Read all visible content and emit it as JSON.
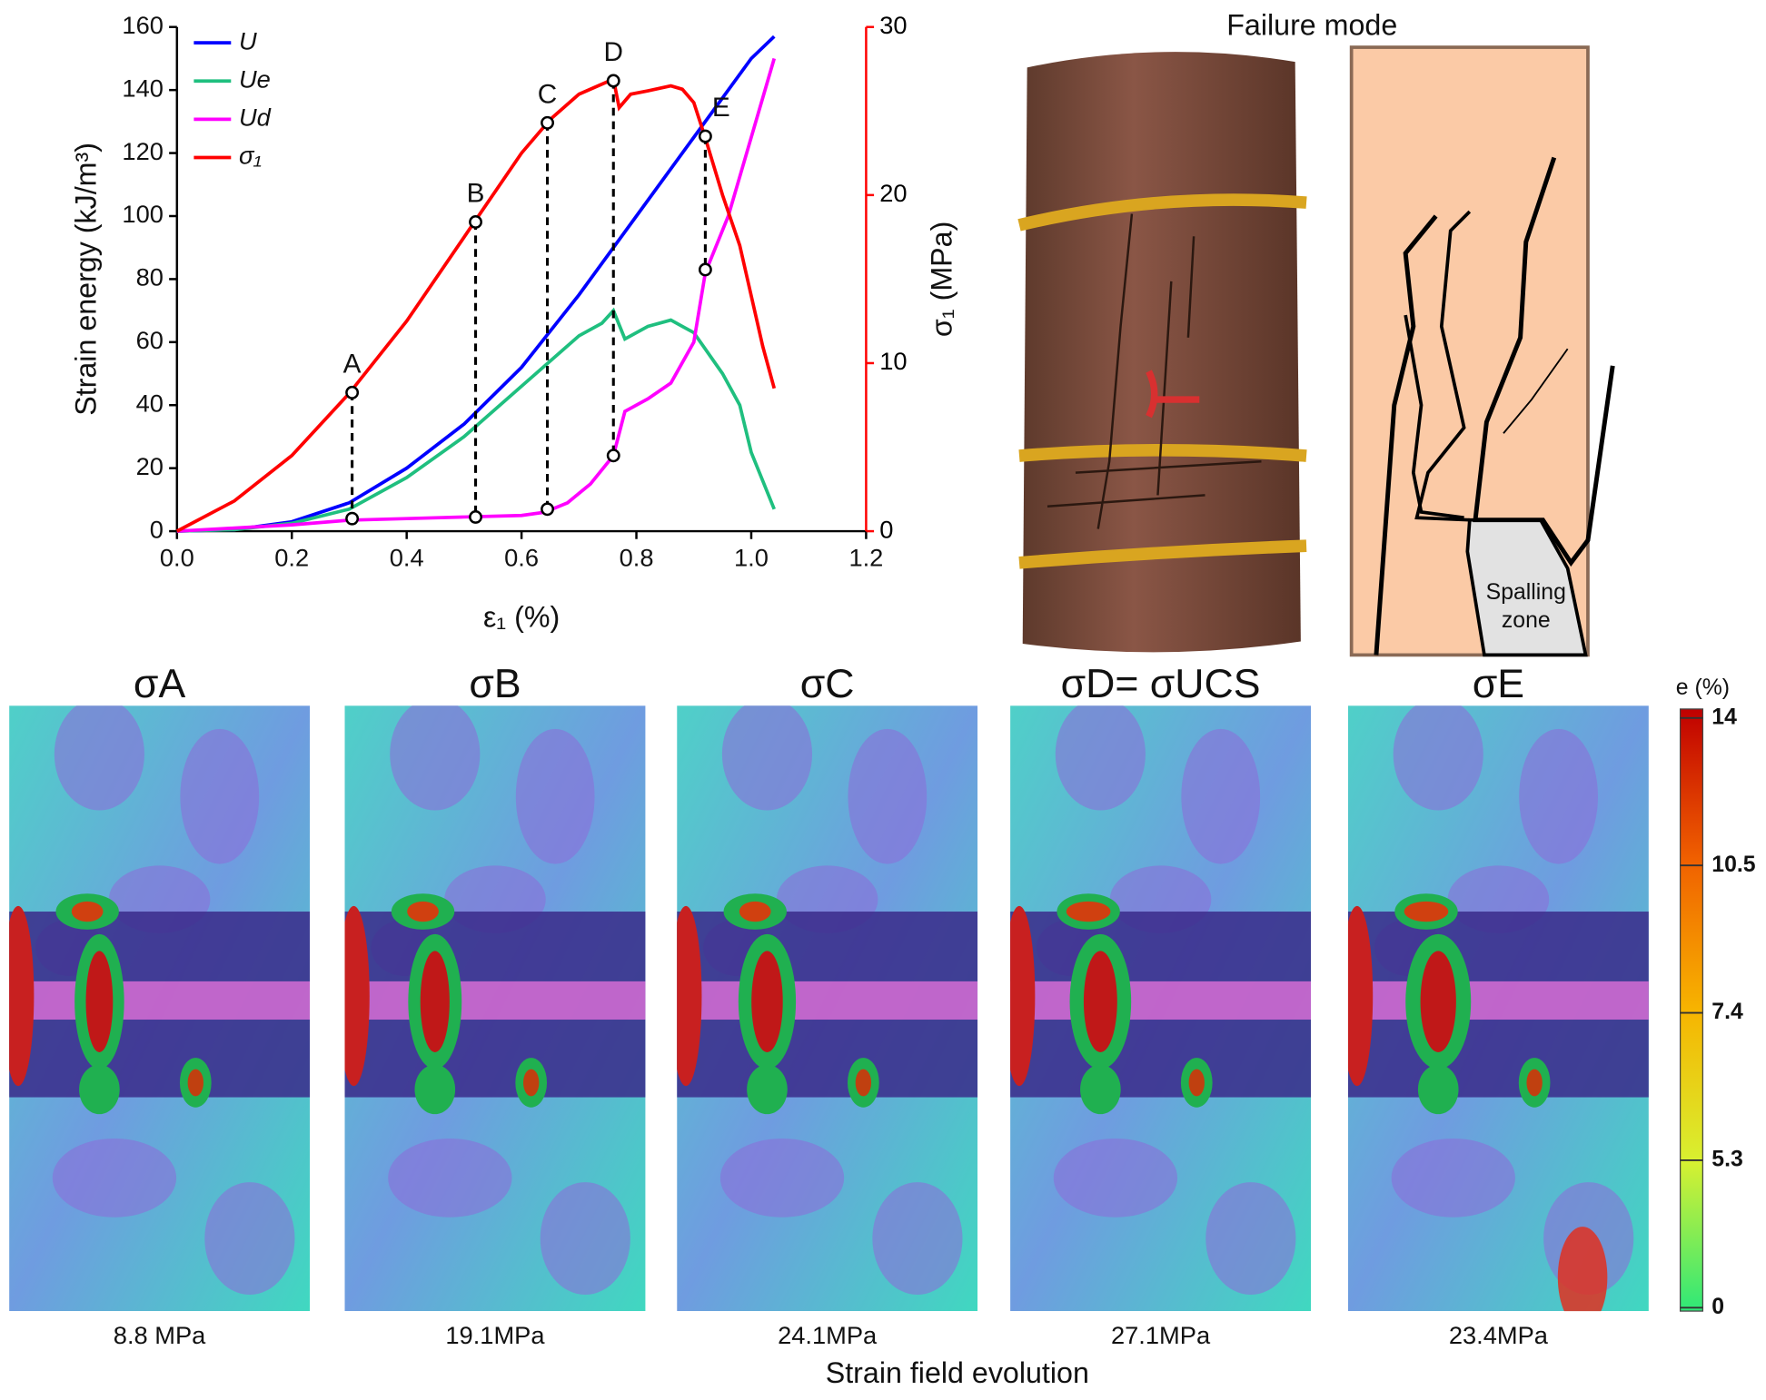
{
  "chart_data": {
    "type": "line",
    "x_label": "ε₁ (%)",
    "y_label": "Strain energy (kJ/m³)",
    "y2_label": "σ₁ (MPa)",
    "xlim": [
      0,
      1.2
    ],
    "xticks": [
      {
        "value": 0,
        "label": "0.0"
      },
      {
        "value": 0.2,
        "label": "0.2"
      },
      {
        "value": 0.4,
        "label": "0.4"
      },
      {
        "value": 0.6,
        "label": "0.6"
      },
      {
        "value": 0.8,
        "label": "0.8"
      },
      {
        "value": 1,
        "label": "1.0"
      },
      {
        "value": 1.2,
        "label": "1.2"
      }
    ],
    "ylim": [
      0,
      160
    ],
    "yticks": [
      0,
      20,
      40,
      60,
      80,
      100,
      120,
      140,
      160
    ],
    "y2lim": [
      0,
      30
    ],
    "y2ticks": [
      0,
      10,
      20,
      30
    ],
    "series": [
      {
        "name": "U",
        "color": "#0000ff",
        "x": [
          0,
          0.1,
          0.2,
          0.3,
          0.4,
          0.5,
          0.6,
          0.7,
          0.8,
          0.9,
          1.0,
          1.04
        ],
        "values": [
          0,
          0.5,
          3,
          9,
          20,
          34,
          52,
          75,
          100,
          125,
          150,
          157
        ]
      },
      {
        "name": "Ue",
        "color": "#1fbf7f",
        "x": [
          0,
          0.1,
          0.2,
          0.3,
          0.4,
          0.5,
          0.6,
          0.7,
          0.74,
          0.76,
          0.78,
          0.82,
          0.86,
          0.88,
          0.9,
          0.95,
          0.98,
          1.0,
          1.04
        ],
        "values": [
          0,
          0.5,
          2.5,
          7,
          17,
          30,
          46,
          62,
          66,
          70,
          61,
          65,
          67,
          65,
          63,
          50,
          40,
          25,
          7
        ]
      },
      {
        "name": "Ud",
        "color": "#ff00ff",
        "x": [
          0,
          0.1,
          0.2,
          0.3,
          0.4,
          0.5,
          0.6,
          0.64,
          0.68,
          0.72,
          0.76,
          0.78,
          0.82,
          0.86,
          0.9,
          0.92,
          0.96,
          1.0,
          1.04
        ],
        "values": [
          0,
          1,
          2,
          3.5,
          4,
          4.5,
          5,
          6,
          9,
          15,
          24,
          38,
          42,
          47,
          60,
          82,
          100,
          125,
          150
        ]
      },
      {
        "name": "σ₁",
        "color": "#ff0000",
        "axis": "y2",
        "x": [
          0,
          0.1,
          0.2,
          0.3,
          0.4,
          0.5,
          0.52,
          0.6,
          0.65,
          0.7,
          0.76,
          0.77,
          0.79,
          0.82,
          0.86,
          0.88,
          0.9,
          0.92,
          0.95,
          0.98,
          1.0,
          1.02,
          1.04
        ],
        "values": [
          0,
          1.8,
          4.5,
          8.2,
          12.5,
          17.5,
          18.5,
          22.5,
          24.5,
          26,
          26.9,
          25.2,
          26,
          26.2,
          26.5,
          26.3,
          25.5,
          23.4,
          20,
          17,
          14,
          11,
          8.5
        ]
      }
    ],
    "points": [
      {
        "label": "A",
        "x": 0.305,
        "stress": 8.25,
        "energy": 4
      },
      {
        "label": "B",
        "x": 0.52,
        "stress": 18.4,
        "energy": 4.5
      },
      {
        "label": "C",
        "x": 0.645,
        "stress": 24.3,
        "energy": 7
      },
      {
        "label": "D",
        "x": 0.76,
        "stress": 26.8,
        "energy": 24
      },
      {
        "label": "E",
        "x": 0.92,
        "stress": 23.5,
        "energy": 83
      }
    ]
  },
  "failure_mode": {
    "title": "Failure mode",
    "zone_label": [
      "Spalling",
      "zone"
    ]
  },
  "strain_fields": {
    "panels": [
      {
        "title": "σA",
        "stress": "8.8 MPa"
      },
      {
        "title": "σB",
        "stress": "19.1MPa"
      },
      {
        "title": "σC",
        "stress": "24.1MPa"
      },
      {
        "title": "σD= σUCS",
        "stress": "27.1MPa"
      },
      {
        "title": "σE",
        "stress": "23.4MPa"
      }
    ],
    "caption": "Strain field evolution",
    "colorbar": {
      "label": "e (%)",
      "ticks": [
        0,
        5.3,
        7.4,
        10.5,
        14
      ]
    }
  }
}
